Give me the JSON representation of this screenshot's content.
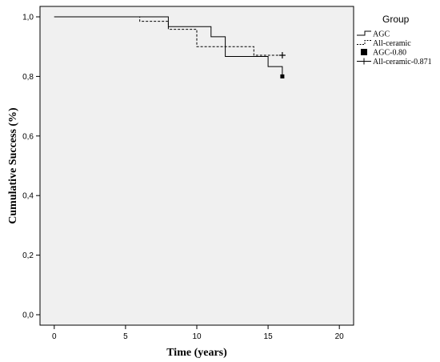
{
  "chart_data": {
    "type": "line",
    "step": true,
    "xlabel": "Time (years)",
    "ylabel": "Cumulative Success (%)",
    "xlim": [
      -1,
      21
    ],
    "ylim": [
      -0.035,
      1.035
    ],
    "x_ticks": [
      0,
      5,
      10,
      15,
      20
    ],
    "y_ticks": [
      0.0,
      0.2,
      0.4,
      0.6,
      0.8,
      1.0
    ],
    "y_tick_labels": [
      "0,0",
      "0,2",
      "0,4",
      "0,6",
      "0,8",
      "1,0"
    ],
    "grid": false,
    "background": "#f0f0f0",
    "series": [
      {
        "name": "AGC",
        "style": "solid",
        "color": "#000000",
        "points": [
          [
            0,
            1.0
          ],
          [
            8,
            1.0
          ],
          [
            8,
            0.967
          ],
          [
            11,
            0.967
          ],
          [
            11,
            0.933
          ],
          [
            12,
            0.933
          ],
          [
            12,
            0.867
          ],
          [
            15,
            0.867
          ],
          [
            15,
            0.833
          ],
          [
            16,
            0.833
          ],
          [
            16,
            0.8
          ]
        ]
      },
      {
        "name": "All-ceramic",
        "style": "dashed",
        "color": "#000000",
        "points": [
          [
            0,
            1.0
          ],
          [
            6,
            1.0
          ],
          [
            6,
            0.985
          ],
          [
            8,
            0.985
          ],
          [
            8,
            0.958
          ],
          [
            10,
            0.958
          ],
          [
            10,
            0.9
          ],
          [
            14,
            0.9
          ],
          [
            14,
            0.871
          ],
          [
            16,
            0.871
          ]
        ]
      }
    ],
    "censor_marks": [
      {
        "name": "AGC-0.80",
        "marker": "square",
        "x": 16,
        "y": 0.8
      },
      {
        "name": "All-ceramic-0.871",
        "marker": "plus",
        "x": 16,
        "y": 0.871
      }
    ],
    "legend": {
      "title": "Group",
      "placement": "right",
      "entries": [
        {
          "label": "AGC",
          "marker": "solid-line"
        },
        {
          "label": "All-ceramic",
          "marker": "dashed-line"
        },
        {
          "label": "AGC-0.80",
          "marker": "square"
        },
        {
          "label": "All-ceramic-0.871",
          "marker": "plus"
        }
      ]
    }
  }
}
